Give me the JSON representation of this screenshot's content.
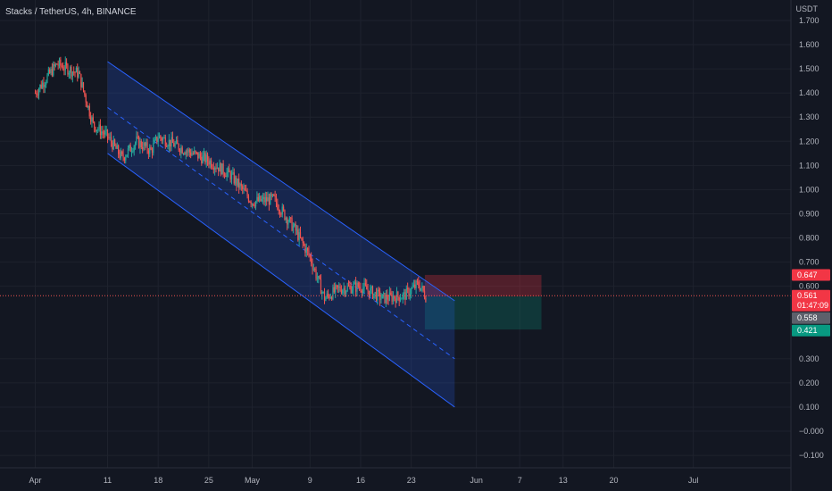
{
  "header": {
    "title": "Stacks / TetherUS, 4h, BINANCE"
  },
  "axis": {
    "unit": "USDT"
  },
  "colors": {
    "background": "#131722",
    "up": "#26a69a",
    "down": "#ef5350",
    "channel": "#2962ff",
    "stop_zone": "#f23645",
    "target_zone": "#089981",
    "price_line": "#ef5350"
  },
  "chart_data": {
    "type": "candlestick",
    "y_ticks": [
      "1.700",
      "1.600",
      "1.500",
      "1.400",
      "1.300",
      "1.200",
      "1.100",
      "1.000",
      "0.900",
      "0.800",
      "0.700",
      "0.600",
      "0.300",
      "0.200",
      "0.100",
      "−0.000",
      "−0.100"
    ],
    "x_ticks": [
      "Apr",
      "11",
      "18",
      "25",
      "May",
      "9",
      "16",
      "23",
      "Jun",
      "7",
      "13",
      "20",
      "Jul"
    ],
    "ylim": [
      -0.15,
      1.75
    ],
    "price_badges": [
      {
        "label": "0.647",
        "value": 0.647,
        "color": "#f23645"
      },
      {
        "label": "0.561",
        "sub": "01:47:09",
        "value": 0.561,
        "color": "#f23645"
      },
      {
        "label": "0.558",
        "value": 0.558,
        "color": "#5d606b"
      },
      {
        "label": "0.421",
        "value": 0.421,
        "color": "#089981"
      }
    ],
    "current_price": 0.561,
    "position": {
      "entry": 0.558,
      "stop": 0.647,
      "target": 0.421
    },
    "price_path": [
      {
        "x": "Apr 1",
        "y": 1.4
      },
      {
        "x": "Apr 4",
        "y": 1.52
      },
      {
        "x": "Apr 7",
        "y": 1.48
      },
      {
        "x": "Apr 9",
        "y": 1.27
      },
      {
        "x": "Apr 11",
        "y": 1.22
      },
      {
        "x": "Apr 13",
        "y": 1.13
      },
      {
        "x": "Apr 15",
        "y": 1.2
      },
      {
        "x": "Apr 17",
        "y": 1.16
      },
      {
        "x": "Apr 18",
        "y": 1.22
      },
      {
        "x": "Apr 22",
        "y": 1.16
      },
      {
        "x": "Apr 25",
        "y": 1.12
      },
      {
        "x": "Apr 28",
        "y": 1.06
      },
      {
        "x": "May 1",
        "y": 0.95
      },
      {
        "x": "May 4",
        "y": 0.96
      },
      {
        "x": "May 7",
        "y": 0.83
      },
      {
        "x": "May 9",
        "y": 0.72
      },
      {
        "x": "May 11",
        "y": 0.55
      },
      {
        "x": "May 13",
        "y": 0.59
      },
      {
        "x": "May 16",
        "y": 0.6
      },
      {
        "x": "May 19",
        "y": 0.55
      },
      {
        "x": "May 22",
        "y": 0.56
      },
      {
        "x": "May 24",
        "y": 0.61
      },
      {
        "x": "May 25",
        "y": 0.56
      }
    ]
  }
}
